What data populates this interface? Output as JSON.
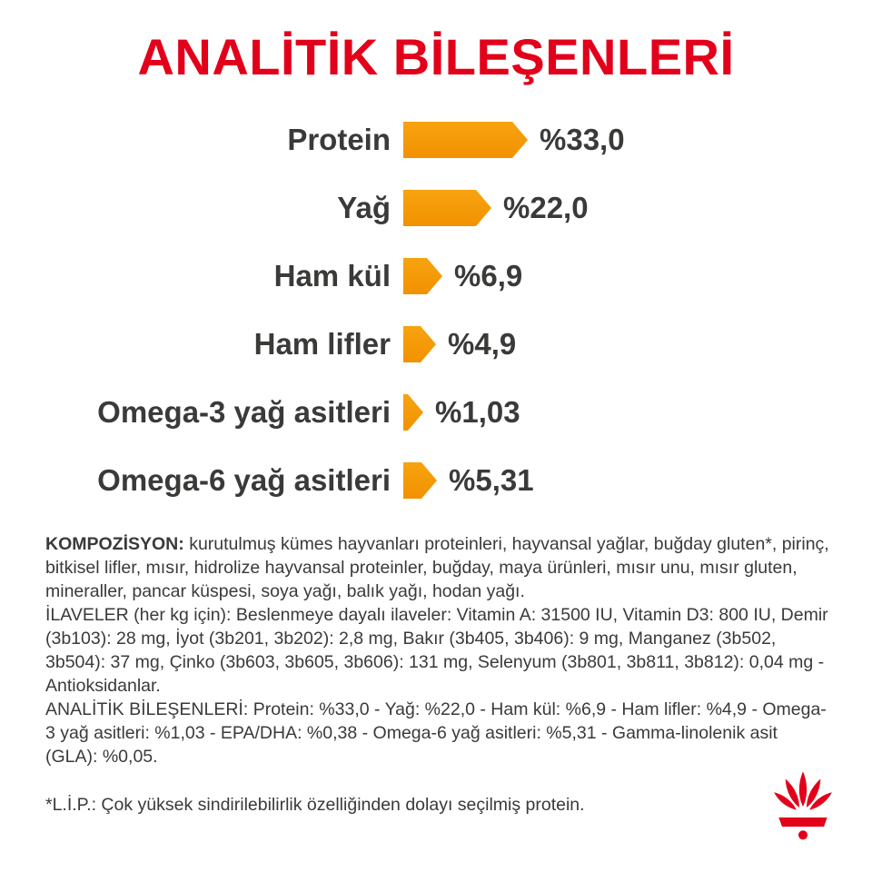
{
  "page": {
    "title": "ANALİTİK BİLEŞENLERİ"
  },
  "chart_data": {
    "type": "bar",
    "orientation": "horizontal",
    "title": "ANALİTİK BİLEŞENLERİ",
    "categories": [
      "Protein",
      "Yağ",
      "Ham kül",
      "Ham lifler",
      "Omega-3 yağ asitleri",
      "Omega-6 yağ asitleri"
    ],
    "values": [
      33.0,
      22.0,
      6.9,
      4.9,
      1.03,
      5.31
    ],
    "value_labels": [
      "%33,0",
      "%22,0",
      "%6,9",
      "%4,9",
      "%1,03",
      "%5,31"
    ],
    "unit": "%",
    "xlim": [
      0,
      35
    ],
    "grid": false,
    "legend": false,
    "bar_color": "#F49800"
  },
  "sections": {
    "kompozisyon": {
      "label": "KOMPOZİSYON:",
      "text": "kurutulmuş kümes hayvanları proteinleri, hayvansal yağlar, buğday gluten*, pirinç, bitkisel lifler, mısır, hidrolize hayvansal proteinler, buğday, maya ürünleri, mısır unu, mısır gluten, mineraller, pancar küspesi, soya yağı, balık yağı, hodan yağı."
    },
    "ilaveler": {
      "label": "İLAVELER (her kg için):",
      "text": "Beslenmeye dayalı ilaveler: Vitamin A: 31500 IU, Vitamin D3: 800 IU, Demir (3b103): 28 mg, İyot (3b201, 3b202): 2,8 mg, Bakır (3b405, 3b406): 9 mg, Manganez (3b502, 3b504): 37 mg, Çinko (3b603, 3b605, 3b606): 131 mg, Selenyum (3b801, 3b811, 3b812): 0,04 mg - Antioksidanlar."
    },
    "analitik": {
      "label": "ANALİTİK BİLEŞENLERİ:",
      "text": "Protein: %33,0 - Yağ: %22,0 - Ham kül: %6,9 - Ham lifler: %4,9 - Omega-3 yağ asitleri: %1,03 - EPA/DHA: %0,38 - Omega-6 yağ asitleri: %5,31 - Gamma-linolenik asit (GLA): %0,05."
    },
    "footnote": "*L.İ.P.: Çok yüksek sindirilebilirlik özelliğinden dolayı seçilmiş protein."
  },
  "logo": {
    "icon": "royal-canin-crown-logo",
    "color": "#E2001A"
  },
  "colors": {
    "title_red": "#E2001A",
    "bar_orange": "#F49800",
    "text_dark": "#3A3A39",
    "background": "#FFFFFF"
  }
}
